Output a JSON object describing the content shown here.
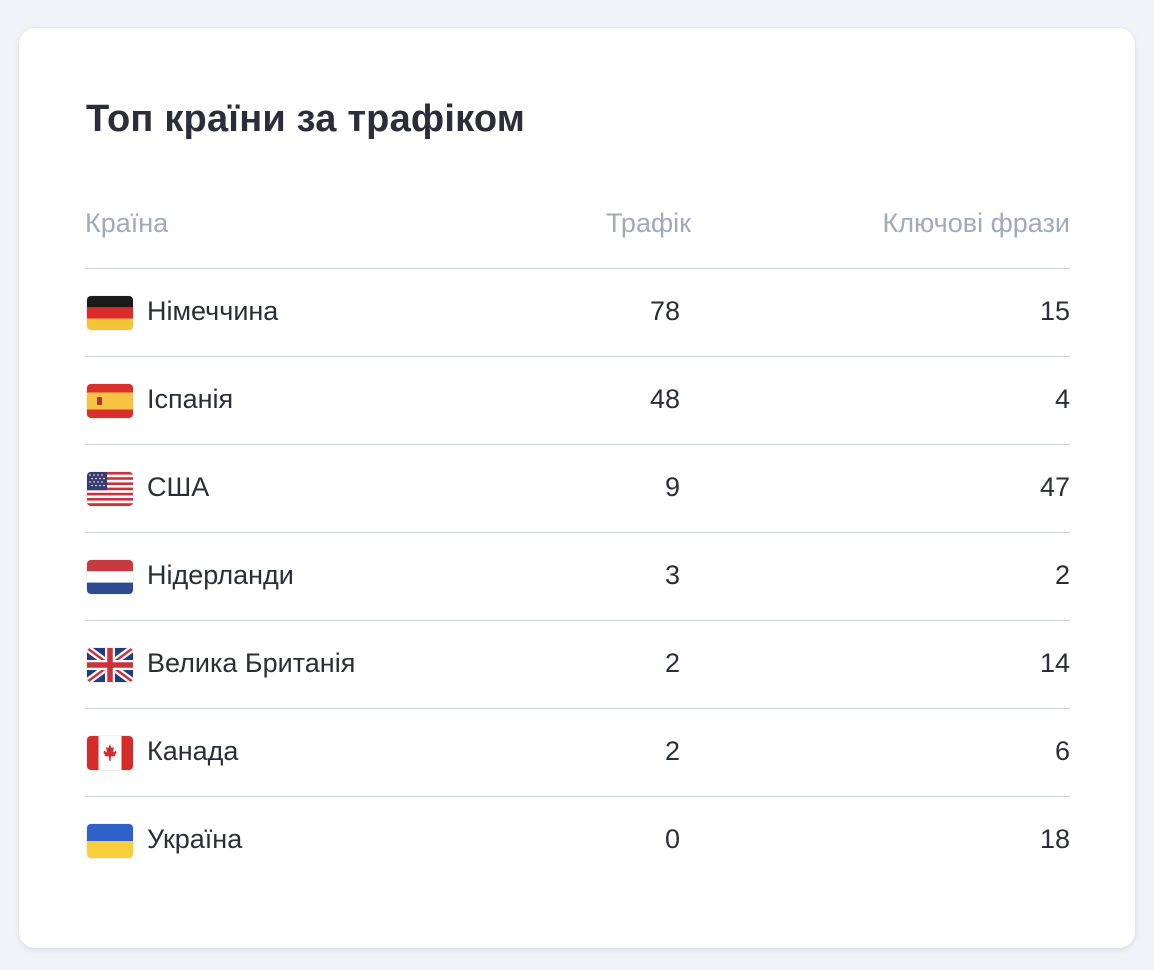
{
  "card": {
    "title": "Топ країни за трафіком"
  },
  "table": {
    "headers": {
      "country": "Країна",
      "traffic": "Трафік",
      "keywords": "Ключові фрази"
    },
    "rows": [
      {
        "flag_icon": "germany-flag-icon",
        "country": "Німеччина",
        "traffic": "78",
        "keywords": "15"
      },
      {
        "flag_icon": "spain-flag-icon",
        "country": "Іспанія",
        "traffic": "48",
        "keywords": "4"
      },
      {
        "flag_icon": "usa-flag-icon",
        "country": "США",
        "traffic": "9",
        "keywords": "47"
      },
      {
        "flag_icon": "netherlands-flag-icon",
        "country": "Нідерланди",
        "traffic": "3",
        "keywords": "2"
      },
      {
        "flag_icon": "uk-flag-icon",
        "country": "Велика Британія",
        "traffic": "2",
        "keywords": "14"
      },
      {
        "flag_icon": "canada-flag-icon",
        "country": "Канада",
        "traffic": "2",
        "keywords": "6"
      },
      {
        "flag_icon": "ukraine-flag-icon",
        "country": "Україна",
        "traffic": "0",
        "keywords": "18"
      }
    ]
  },
  "colors": {
    "card_background": "#ffffff",
    "page_background": "#f2f3f8",
    "title_text": "#2b2d38",
    "header_text": "#a3a8bd",
    "divider": "#cfd3dc"
  }
}
